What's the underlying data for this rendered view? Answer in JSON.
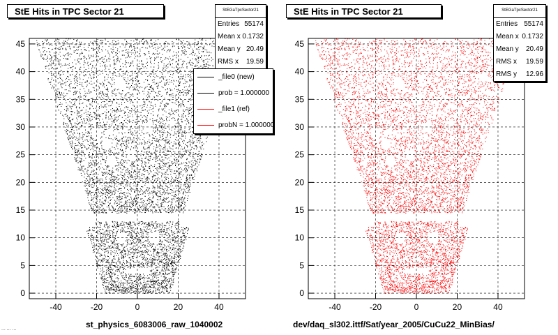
{
  "chart_data": [
    {
      "type": "scatter",
      "title": "StE Hits in TPC Sector 21",
      "xlabel": "st_physics_6083006_raw_1040002",
      "ylabel": "",
      "xlim": [
        -53,
        53
      ],
      "ylim": [
        -1,
        46
      ],
      "x_ticks": [
        -40,
        -20,
        0,
        20,
        40
      ],
      "y_ticks": [
        0,
        5,
        10,
        15,
        20,
        25,
        30,
        35,
        40,
        45
      ],
      "grid": true,
      "marker_color": "#000000",
      "stats": {
        "name": "StEGaTpcSector21",
        "rows": [
          {
            "label": "Entries",
            "value": "55174"
          },
          {
            "label": "Mean x",
            "value": "0.1732"
          },
          {
            "label": "Mean y",
            "value": "20.49"
          },
          {
            "label": "RMS x",
            "value": "19.59"
          }
        ]
      },
      "legend": {
        "placement": "top-right",
        "entries": [
          {
            "label": "_file0 (new)",
            "color": "#000000"
          },
          {
            "label": "prob = 1.000000",
            "color": "#000000"
          },
          {
            "label": "_file1 (ref)",
            "color": "#ff0000"
          },
          {
            "label": "probN = 1.000000",
            "color": "#ff0000"
          }
        ]
      }
    },
    {
      "type": "scatter",
      "title": "StE Hits in TPC Sector 21",
      "xlabel": "dev/daq_sl302.ittf/Sat/year_2005/CuCu22_MinBias/",
      "ylabel": "",
      "xlim": [
        -53,
        53
      ],
      "ylim": [
        -1,
        46
      ],
      "x_ticks": [
        -40,
        -20,
        0,
        20,
        40
      ],
      "y_ticks": [
        0,
        5,
        10,
        15,
        20,
        25,
        30,
        35,
        40,
        45
      ],
      "grid": true,
      "marker_color": "#ff0000",
      "stats": {
        "name": "StEGaTpcSector21",
        "rows": [
          {
            "label": "Entries",
            "value": "55174"
          },
          {
            "label": "Mean x",
            "value": "0.1732"
          },
          {
            "label": "Mean y",
            "value": "20.49"
          },
          {
            "label": "RMS x",
            "value": "19.59"
          },
          {
            "label": "RMS y",
            "value": "12.96"
          }
        ]
      }
    }
  ],
  "footer": "... ... ..."
}
